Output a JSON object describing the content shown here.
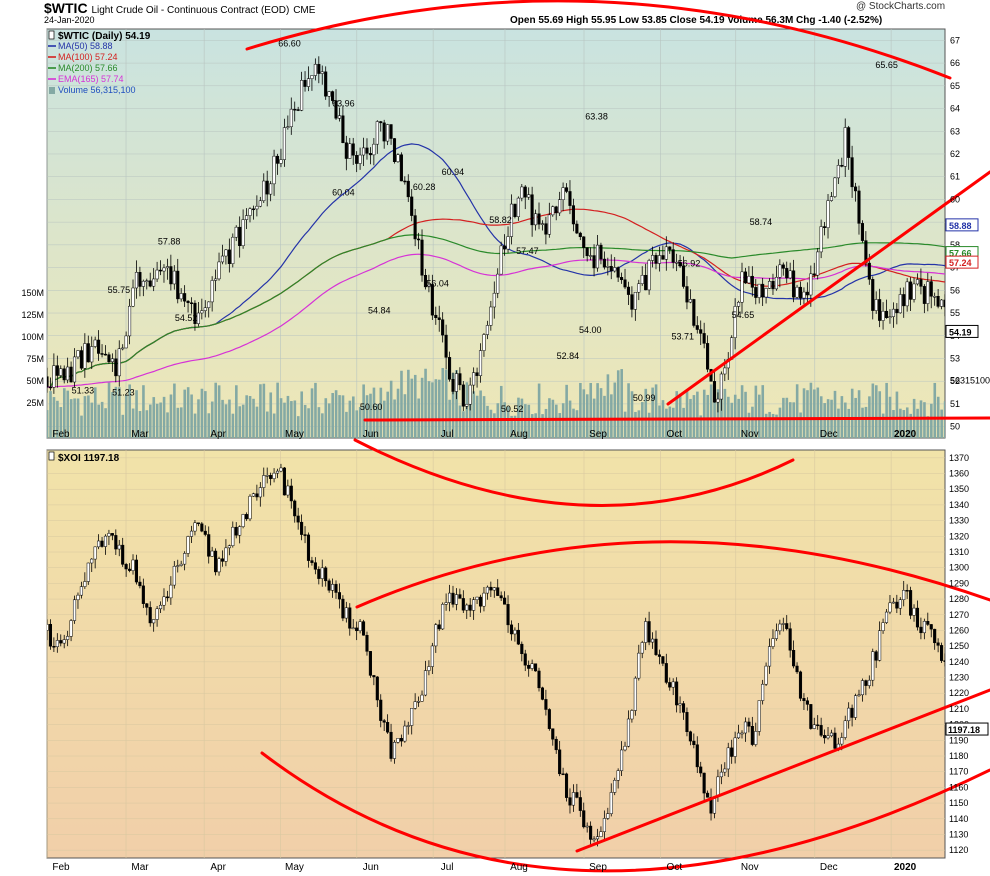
{
  "header": {
    "symbol": "$WTIC",
    "description": "Light Crude Oil - Continuous Contract (EOD)",
    "exchange": "CME",
    "date": "24-Jan-2020",
    "quote": "Open 55.69  High 55.95  Low 53.85  Close 54.19  Volume 56.3M  Chg -1.40 (-2.52%)",
    "copyright": "@ StockCharts.com"
  },
  "colors": {
    "panel1_top": "#c9e3e0",
    "panel1_bottom": "#efe7b5",
    "panel2_top": "#f1e3a9",
    "panel2_bottom": "#f1cfa9",
    "ma50": "#2433a8",
    "ma100": "#d42020",
    "ma200": "#2a8a2a",
    "ema165": "#d632d6",
    "volume": "#84a9a4",
    "annotation": "#ff0000"
  },
  "chart_data": [
    {
      "type": "candlestick",
      "title": "$WTIC Light Crude Oil - Continuous Contract (EOD)",
      "ylim": [
        49.5,
        67.5
      ],
      "yticks": [
        50,
        51,
        52,
        53,
        54,
        55,
        56,
        57,
        58,
        59,
        60,
        61,
        62,
        63,
        64,
        65,
        66,
        67
      ],
      "volume_ticks": [
        "25M",
        "50M",
        "75M",
        "100M",
        "125M",
        "150M"
      ],
      "months": [
        "Feb",
        "Mar",
        "Apr",
        "May",
        "Jun",
        "Jul",
        "Aug",
        "Sep",
        "Oct",
        "Nov",
        "Dec",
        "2020"
      ],
      "legend": [
        {
          "label": "$WTIC (Daily) 54.19",
          "color": "#000000",
          "icon": "candle-icon"
        },
        {
          "label": "MA(50) 58.88",
          "color": "#2433a8",
          "icon": "line-icon"
        },
        {
          "label": "MA(100) 57.24",
          "color": "#d42020",
          "icon": "line-icon"
        },
        {
          "label": "MA(200) 57.66",
          "color": "#2a8a2a",
          "icon": "line-icon"
        },
        {
          "label": "EMA(165) 57.74",
          "color": "#d632d6",
          "icon": "line-icon"
        },
        {
          "label": "Volume 56,315,100",
          "color": "#84a9a4",
          "icon": "bar-icon"
        }
      ],
      "price_path": [
        [
          0.02,
          52.2
        ],
        [
          0.05,
          53.5
        ],
        [
          0.075,
          52.3
        ],
        [
          0.1,
          56.5
        ],
        [
          0.13,
          57.0
        ],
        [
          0.165,
          55.0
        ],
        [
          0.21,
          58.2
        ],
        [
          0.255,
          61.5
        ],
        [
          0.285,
          65.0
        ],
        [
          0.3,
          66.5
        ],
        [
          0.32,
          63.8
        ],
        [
          0.345,
          61.0
        ],
        [
          0.37,
          63.5
        ],
        [
          0.39,
          62.0
        ],
        [
          0.41,
          58.5
        ],
        [
          0.43,
          55.2
        ],
        [
          0.45,
          52.0
        ],
        [
          0.47,
          51.2
        ],
        [
          0.49,
          54.2
        ],
        [
          0.51,
          58.5
        ],
        [
          0.53,
          60.5
        ],
        [
          0.55,
          58.3
        ],
        [
          0.575,
          60.4
        ],
        [
          0.6,
          57.3
        ],
        [
          0.625,
          57.5
        ],
        [
          0.65,
          55.3
        ],
        [
          0.675,
          57.2
        ],
        [
          0.7,
          57.6
        ],
        [
          0.72,
          55.0
        ],
        [
          0.745,
          51.0
        ],
        [
          0.775,
          56.6
        ],
        [
          0.8,
          55.8
        ],
        [
          0.82,
          57.1
        ],
        [
          0.845,
          55.2
        ],
        [
          0.865,
          59.0
        ],
        [
          0.89,
          62.8
        ],
        [
          0.905,
          58.8
        ],
        [
          0.92,
          55.5
        ],
        [
          0.935,
          54.6
        ],
        [
          0.955,
          55.8
        ],
        [
          0.975,
          56.0
        ],
        [
          1.0,
          55.6
        ]
      ],
      "annotations": [
        {
          "x": 0.27,
          "value": 66.6,
          "text": "66.60"
        },
        {
          "x": 0.04,
          "value": 51.33,
          "text": "51.33"
        },
        {
          "x": 0.08,
          "value": 55.75,
          "text": "55.75"
        },
        {
          "x": 0.085,
          "value": 51.23,
          "text": "51.23"
        },
        {
          "x": 0.136,
          "value": 57.88,
          "text": "57.88"
        },
        {
          "x": 0.155,
          "value": 54.52,
          "text": "54.52"
        },
        {
          "x": 0.33,
          "value": 63.96,
          "text": "63.96"
        },
        {
          "x": 0.33,
          "value": 60.04,
          "text": "60.04"
        },
        {
          "x": 0.37,
          "value": 54.84,
          "text": "54.84"
        },
        {
          "x": 0.361,
          "value": 50.6,
          "text": "50.60"
        },
        {
          "x": 0.42,
          "value": 60.28,
          "text": "60.28"
        },
        {
          "x": 0.435,
          "value": 56.04,
          "text": "56.04"
        },
        {
          "x": 0.452,
          "value": 60.94,
          "text": "60.94"
        },
        {
          "x": 0.505,
          "value": 58.82,
          "text": "58.82"
        },
        {
          "x": 0.535,
          "value": 57.47,
          "text": "57.47"
        },
        {
          "x": 0.518,
          "value": 50.52,
          "text": "50.52"
        },
        {
          "x": 0.612,
          "value": 63.38,
          "text": "63.38"
        },
        {
          "x": 0.58,
          "value": 52.84,
          "text": "52.84"
        },
        {
          "x": 0.605,
          "value": 54.0,
          "text": "54.00"
        },
        {
          "x": 0.665,
          "value": 50.99,
          "text": "50.99"
        },
        {
          "x": 0.715,
          "value": 56.92,
          "text": "56.92"
        },
        {
          "x": 0.708,
          "value": 53.71,
          "text": "53.71"
        },
        {
          "x": 0.795,
          "value": 58.74,
          "text": "58.74"
        },
        {
          "x": 0.775,
          "value": 54.65,
          "text": "54.65"
        },
        {
          "x": 0.935,
          "value": 65.65,
          "text": "65.65"
        }
      ],
      "right_tags": [
        {
          "value": 58.88,
          "text": "58.88",
          "color": "#2433a8"
        },
        {
          "value": 57.66,
          "text": "57.66",
          "color": "#2a8a2a"
        },
        {
          "value": 57.24,
          "text": "57.24",
          "color": "#d42020"
        },
        {
          "value": 54.19,
          "text": "54.19",
          "color": "#000000"
        }
      ],
      "volume_label": "56315100"
    },
    {
      "type": "candlestick",
      "title": "$XOI 1197.18",
      "ylim": [
        1115,
        1375
      ],
      "yticks": [
        1120,
        1130,
        1140,
        1150,
        1160,
        1170,
        1180,
        1190,
        1200,
        1210,
        1220,
        1230,
        1240,
        1250,
        1260,
        1270,
        1280,
        1290,
        1300,
        1310,
        1320,
        1330,
        1340,
        1350,
        1360,
        1370
      ],
      "months": [
        "Feb",
        "Mar",
        "Apr",
        "May",
        "Jun",
        "Jul",
        "Aug",
        "Sep",
        "Oct",
        "Nov",
        "Dec",
        "2020"
      ],
      "legend": [
        {
          "label": "$XOI 1197.18",
          "color": "#000000",
          "icon": "candle-icon"
        }
      ],
      "price_path": [
        [
          0.0,
          1260
        ],
        [
          0.02,
          1245
        ],
        [
          0.04,
          1285
        ],
        [
          0.06,
          1310
        ],
        [
          0.08,
          1320
        ],
        [
          0.11,
          1295
        ],
        [
          0.13,
          1260
        ],
        [
          0.16,
          1300
        ],
        [
          0.185,
          1325
        ],
        [
          0.21,
          1300
        ],
        [
          0.235,
          1330
        ],
        [
          0.26,
          1345
        ],
        [
          0.28,
          1366
        ],
        [
          0.3,
          1345
        ],
        [
          0.32,
          1310
        ],
        [
          0.345,
          1290
        ],
        [
          0.365,
          1268
        ],
        [
          0.385,
          1265
        ],
        [
          0.405,
          1220
        ],
        [
          0.425,
          1180
        ],
        [
          0.44,
          1195
        ],
        [
          0.46,
          1215
        ],
        [
          0.48,
          1265
        ],
        [
          0.5,
          1282
        ],
        [
          0.52,
          1275
        ],
        [
          0.54,
          1285
        ],
        [
          0.56,
          1278
        ],
        [
          0.58,
          1255
        ],
        [
          0.6,
          1230
        ],
        [
          0.62,
          1192
        ],
        [
          0.64,
          1158
        ],
        [
          0.66,
          1140
        ],
        [
          0.675,
          1122
        ],
        [
          0.69,
          1140
        ],
        [
          0.705,
          1175
        ],
        [
          0.72,
          1215
        ],
        [
          0.735,
          1262
        ],
        [
          0.755,
          1240
        ],
        [
          0.775,
          1215
        ],
        [
          0.795,
          1192
        ],
        [
          0.815,
          1145
        ],
        [
          0.835,
          1175
        ],
        [
          0.855,
          1200
        ],
        [
          0.87,
          1190
        ],
        [
          0.89,
          1250
        ],
        [
          0.905,
          1270
        ],
        [
          0.92,
          1232
        ],
        [
          0.94,
          1200
        ],
        [
          0.955,
          1188
        ],
        [
          0.975,
          1190
        ],
        [
          0.995,
          1215
        ],
        [
          1.015,
          1238
        ],
        [
          1.035,
          1275
        ],
        [
          1.055,
          1285
        ],
        [
          1.075,
          1262
        ],
        [
          1.09,
          1255
        ],
        [
          1.105,
          1240
        ]
      ],
      "right_tags": [
        {
          "value": 1197.18,
          "text": "1197.18",
          "color": "#000000"
        }
      ]
    }
  ]
}
